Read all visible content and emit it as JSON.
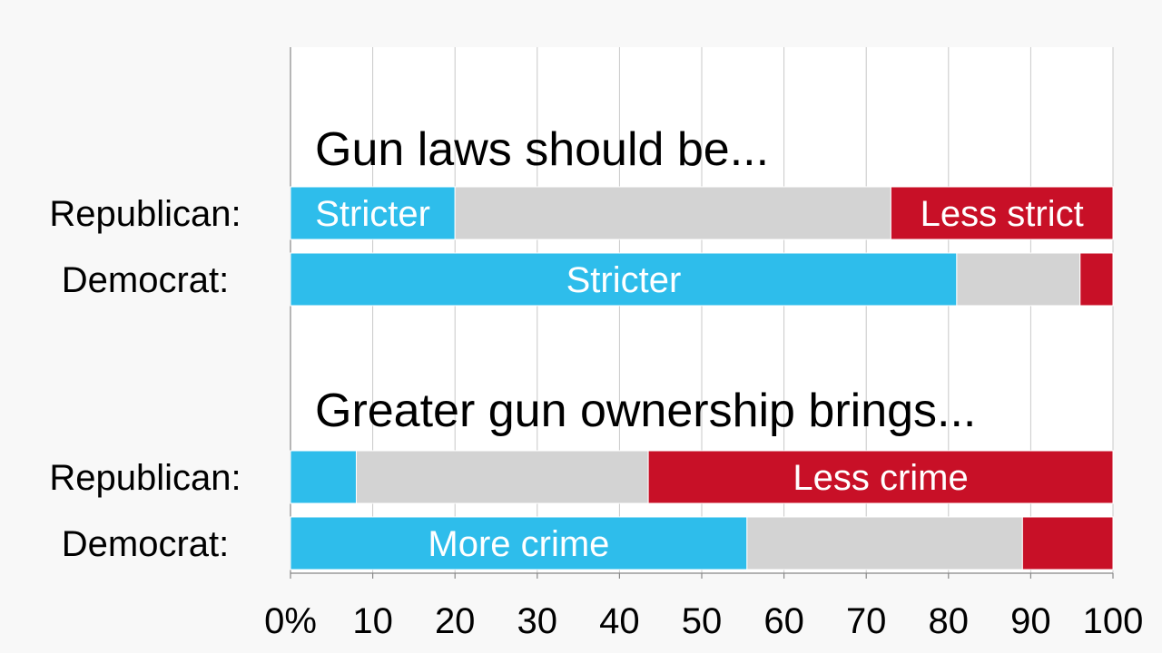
{
  "colors": {
    "stricter": "#2ebdeb",
    "neutral": "#d3d3d3",
    "less": "#c81027",
    "background": "#f8f8f8"
  },
  "chart_data": {
    "type": "bar",
    "orientation": "horizontal",
    "stacked": true,
    "xlim": [
      0,
      100
    ],
    "xticks": [
      "0%",
      "10",
      "20",
      "30",
      "40",
      "50",
      "60",
      "70",
      "80",
      "90",
      "100"
    ],
    "grid": true,
    "groups": [
      {
        "title": "Gun laws should be...",
        "rows": [
          {
            "label": "Republican:",
            "segments": [
              {
                "value": 20,
                "color": "stricter",
                "label": "Stricter"
              },
              {
                "value": 53,
                "color": "neutral",
                "label": ""
              },
              {
                "value": 27,
                "color": "less",
                "label": "Less strict"
              }
            ]
          },
          {
            "label": "Democrat:",
            "segments": [
              {
                "value": 81,
                "color": "stricter",
                "label": "Stricter"
              },
              {
                "value": 15,
                "color": "neutral",
                "label": ""
              },
              {
                "value": 4,
                "color": "less",
                "label": ""
              }
            ]
          }
        ]
      },
      {
        "title": "Greater gun ownership brings...",
        "rows": [
          {
            "label": "Republican:",
            "segments": [
              {
                "value": 8,
                "color": "stricter",
                "label": ""
              },
              {
                "value": 35.5,
                "color": "neutral",
                "label": ""
              },
              {
                "value": 56.5,
                "color": "less",
                "label": "Less crime"
              }
            ]
          },
          {
            "label": "Democrat:",
            "segments": [
              {
                "value": 55.5,
                "color": "stricter",
                "label": "More crime"
              },
              {
                "value": 33.5,
                "color": "neutral",
                "label": ""
              },
              {
                "value": 11,
                "color": "less",
                "label": ""
              }
            ]
          }
        ]
      }
    ]
  }
}
